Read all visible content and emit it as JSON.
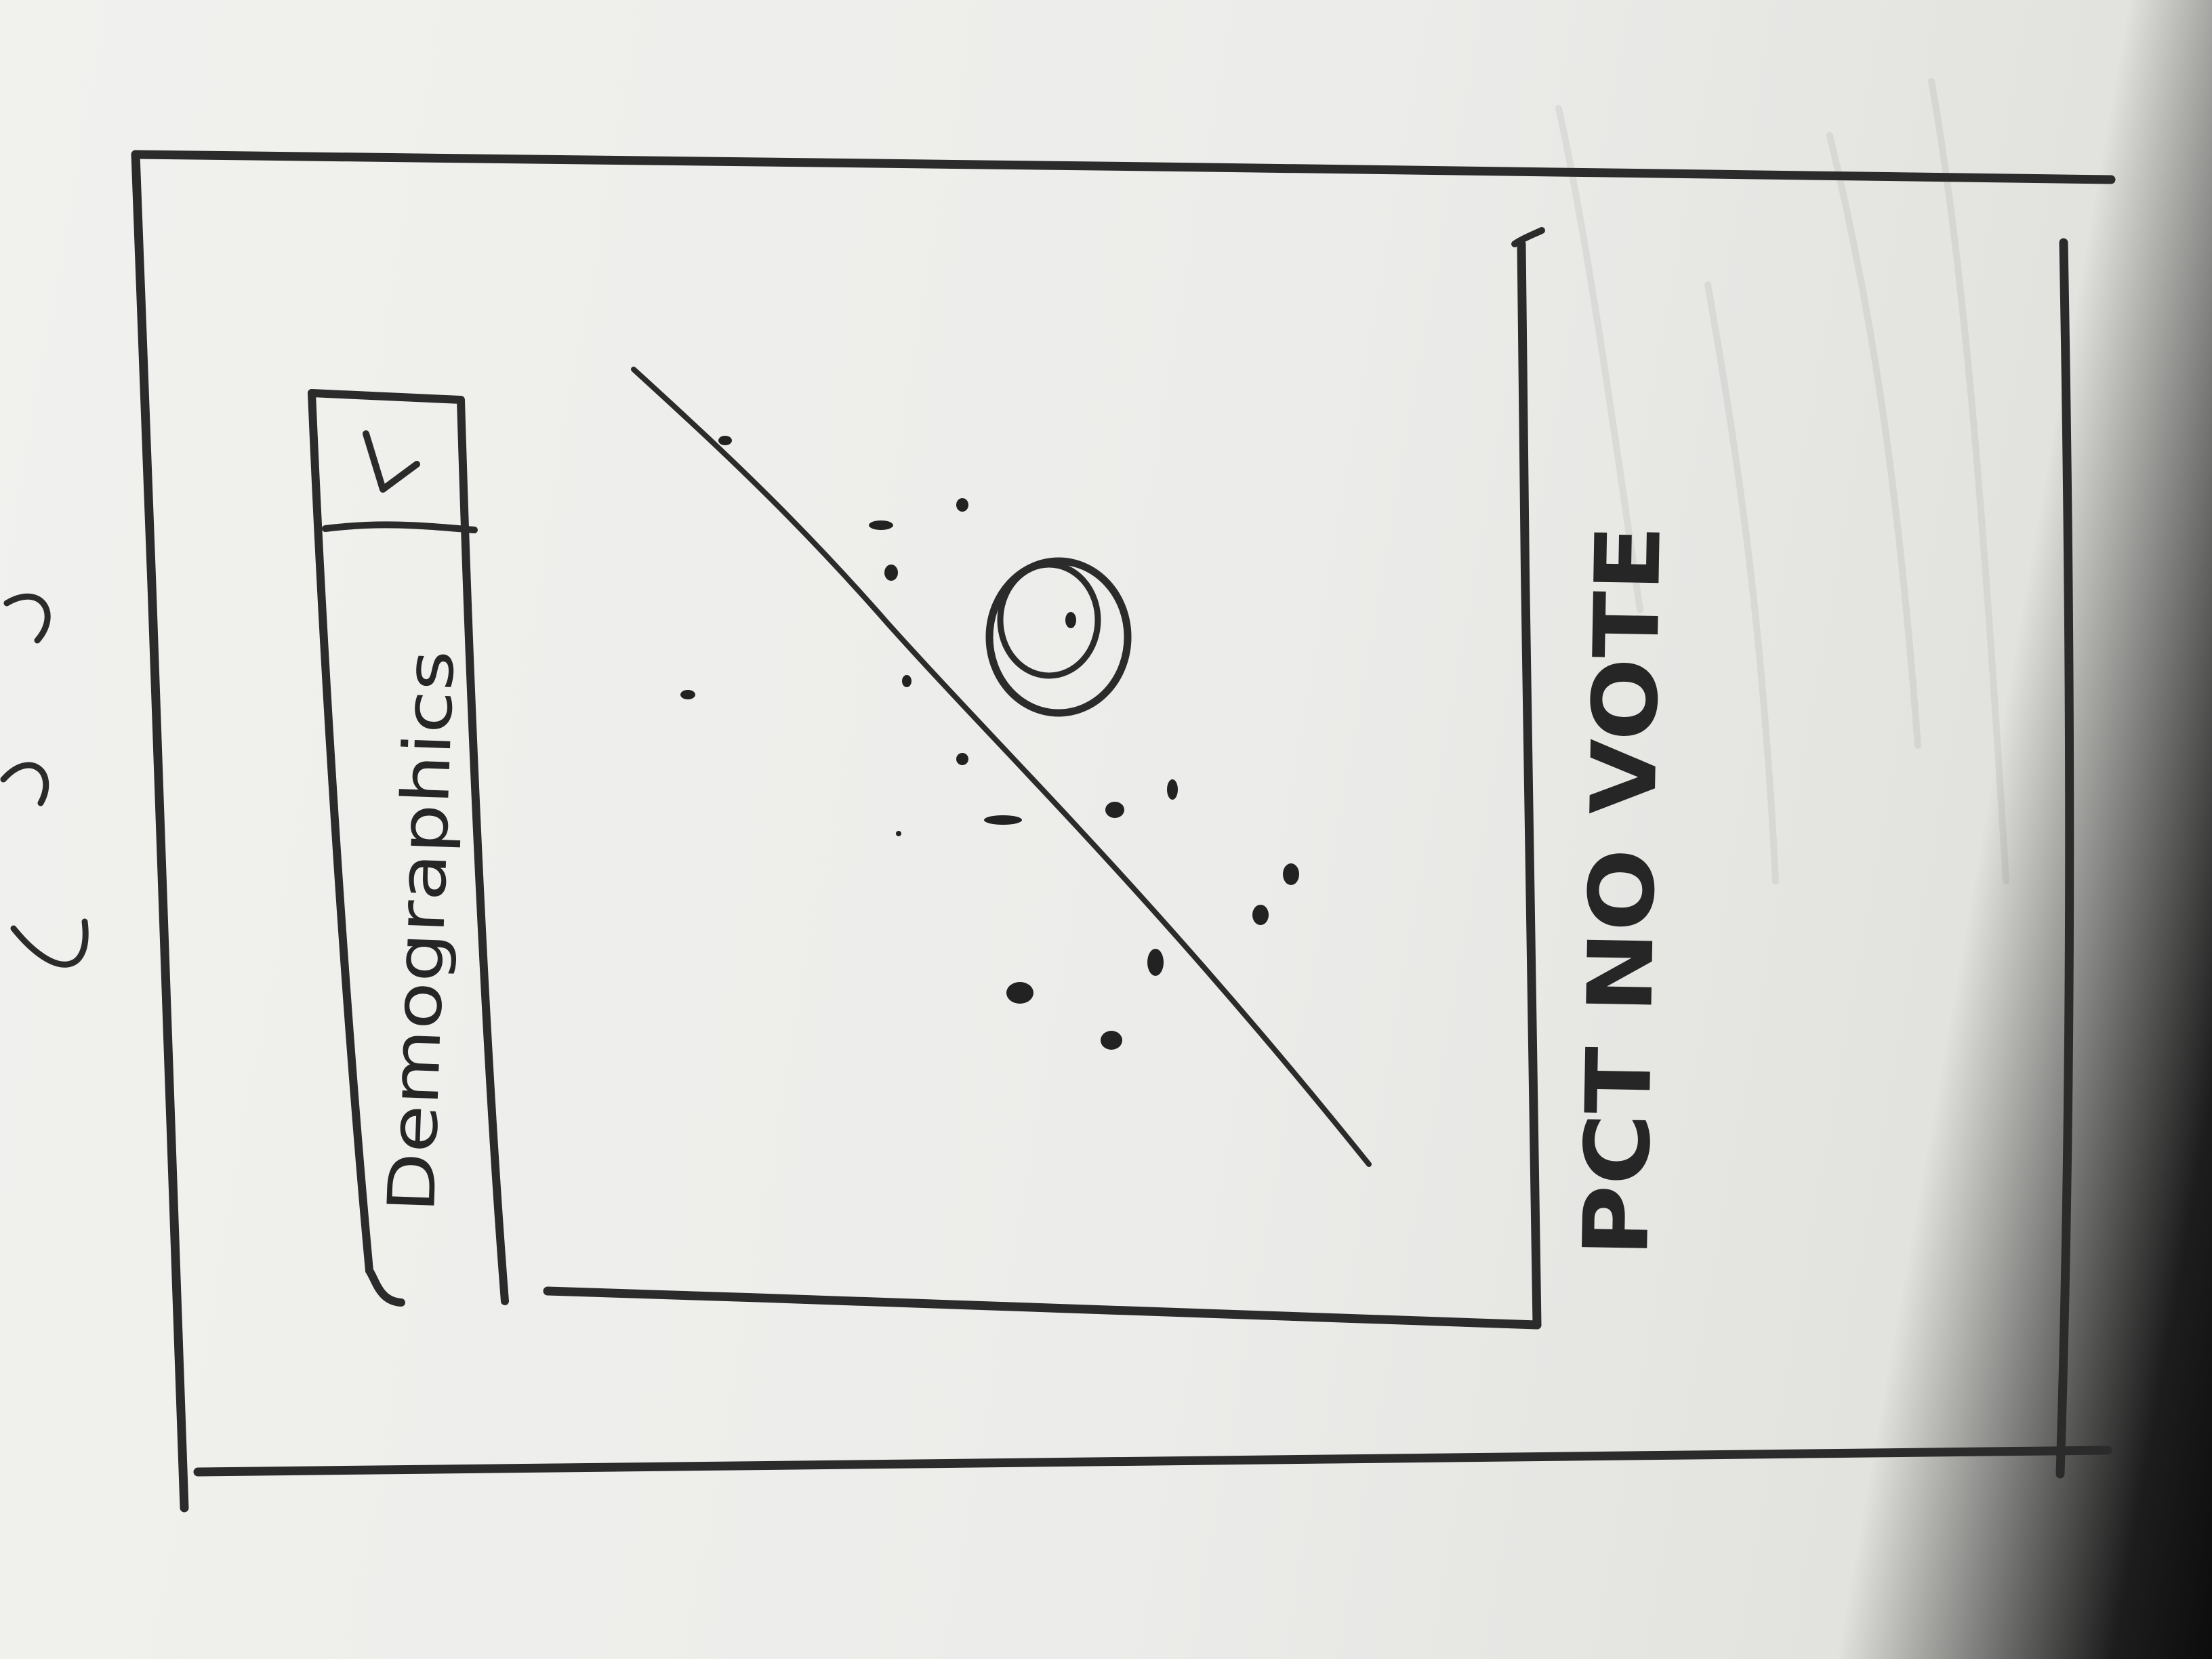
{
  "sketch": {
    "dropdown_value": "Demographics",
    "dropdown_arrow_icon": "triangle-down-icon",
    "chart_footer_label": "PCT NO VOTE",
    "outlier_marker": "circle-highlight",
    "colors": {
      "pencil": "#2b2b2b",
      "paper": "#ececea"
    }
  },
  "chart_data": {
    "type": "scatter",
    "title": "",
    "xlabel": "",
    "ylabel": "",
    "trend_line": true,
    "highlighted_points": 1,
    "legend": "none",
    "grid": false
  }
}
